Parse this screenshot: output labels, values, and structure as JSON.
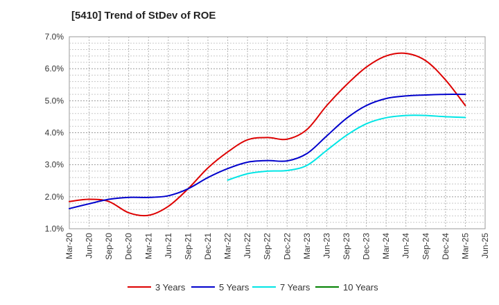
{
  "chart_data": {
    "type": "line",
    "title": "[5410]  Trend of StDev of ROE",
    "xlabel": "",
    "ylabel": "",
    "categories": [
      "Mar-20",
      "Jun-20",
      "Sep-20",
      "Dec-20",
      "Mar-21",
      "Jun-21",
      "Sep-21",
      "Dec-21",
      "Mar-22",
      "Jun-22",
      "Sep-22",
      "Dec-22",
      "Mar-23",
      "Jun-23",
      "Sep-23",
      "Dec-23",
      "Mar-24",
      "Jun-24",
      "Sep-24",
      "Dec-24",
      "Mar-25",
      "Jun-25"
    ],
    "yticks": [
      "1.0%",
      "2.0%",
      "3.0%",
      "4.0%",
      "5.0%",
      "6.0%",
      "7.0%"
    ],
    "ylim": [
      1.0,
      7.0
    ],
    "grid": true,
    "legend_position": "bottom",
    "series": [
      {
        "name": "3 Years",
        "color": "#dd0000",
        "values": [
          1.85,
          1.92,
          1.85,
          1.5,
          1.42,
          1.7,
          2.25,
          2.9,
          3.4,
          3.78,
          3.85,
          3.8,
          4.1,
          4.85,
          5.5,
          6.05,
          6.4,
          6.48,
          6.25,
          5.65,
          4.85,
          null
        ]
      },
      {
        "name": "5 Years",
        "color": "#0000cc",
        "values": [
          1.63,
          1.78,
          1.92,
          1.98,
          1.98,
          2.03,
          2.25,
          2.6,
          2.88,
          3.08,
          3.13,
          3.12,
          3.35,
          3.9,
          4.45,
          4.85,
          5.07,
          5.15,
          5.18,
          5.2,
          5.2,
          null
        ]
      },
      {
        "name": "7 Years",
        "color": "#00e5e5",
        "values": [
          null,
          null,
          null,
          null,
          null,
          null,
          null,
          null,
          2.52,
          2.72,
          2.8,
          2.82,
          2.98,
          3.45,
          3.92,
          4.28,
          4.47,
          4.54,
          4.54,
          4.5,
          4.48,
          null
        ]
      },
      {
        "name": "10 Years",
        "color": "#008000",
        "values": [
          null,
          null,
          null,
          null,
          null,
          null,
          null,
          null,
          null,
          null,
          null,
          null,
          null,
          null,
          null,
          null,
          null,
          null,
          null,
          null,
          null,
          null
        ]
      }
    ]
  }
}
